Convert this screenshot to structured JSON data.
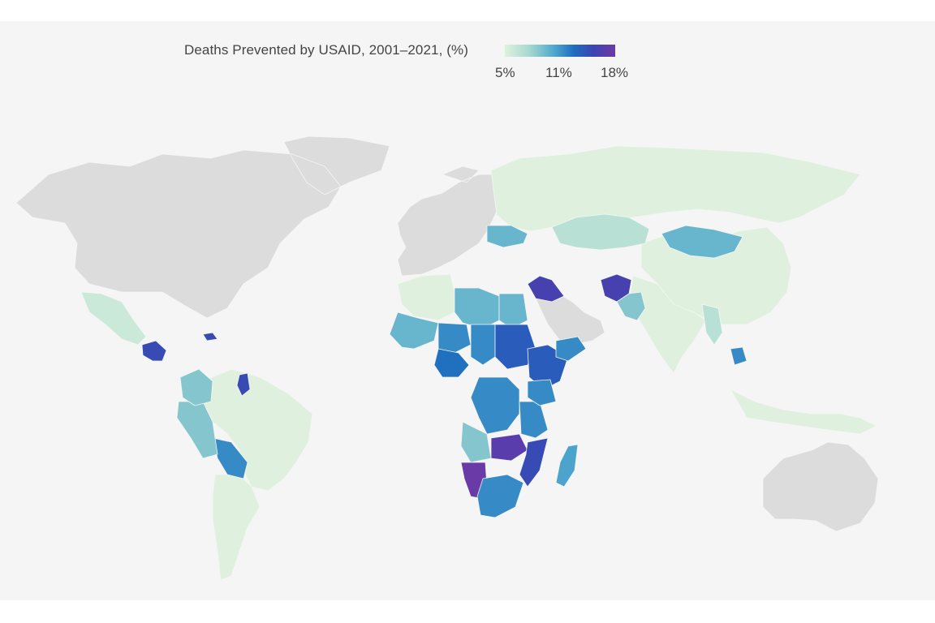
{
  "legend": {
    "title": "Deaths Prevented by USAID, 2001–2021, (%)",
    "tick_low": "5%",
    "tick_mid": "11%",
    "tick_high": "18%",
    "scale_min": 5,
    "scale_mid": 11,
    "scale_max": 18
  },
  "colors": {
    "frame": "#f5f5f5",
    "no_data": "#dcdcdc",
    "scale_lightest": "#dff1de",
    "scale_light": "#a7d9cf",
    "scale_mid": "#4fa7cd",
    "scale_blue": "#1e6fc0",
    "scale_indigo": "#3d43b3",
    "scale_purple": "#6a3aa7"
  },
  "chart_data": {
    "type": "choropleth",
    "title": "Deaths Prevented by USAID, 2001–2021, (%)",
    "color_range": [
      5,
      18
    ],
    "regions": [
      {
        "name": "Canada/USA/Greenland",
        "value": null
      },
      {
        "name": "Europe",
        "value": null
      },
      {
        "name": "Australia",
        "value": null
      },
      {
        "name": "Saudi Arabia",
        "value": null
      },
      {
        "name": "Russia",
        "value": 5
      },
      {
        "name": "China",
        "value": 5
      },
      {
        "name": "India",
        "value": 5
      },
      {
        "name": "Brazil",
        "value": 5
      },
      {
        "name": "Mexico",
        "value": 6
      },
      {
        "name": "Argentina",
        "value": 5
      },
      {
        "name": "Kazakhstan",
        "value": 7
      },
      {
        "name": "Mongolia",
        "value": 10
      },
      {
        "name": "Afghanistan",
        "value": 16
      },
      {
        "name": "Pakistan",
        "value": 9
      },
      {
        "name": "Iraq",
        "value": 16
      },
      {
        "name": "Algeria",
        "value": 5
      },
      {
        "name": "Libya",
        "value": 10
      },
      {
        "name": "Egypt",
        "value": 10
      },
      {
        "name": "Mali",
        "value": 10
      },
      {
        "name": "Niger",
        "value": 12
      },
      {
        "name": "Chad",
        "value": 12
      },
      {
        "name": "Sudan",
        "value": 14
      },
      {
        "name": "Ethiopia",
        "value": 14
      },
      {
        "name": "Nigeria",
        "value": 13
      },
      {
        "name": "DR Congo",
        "value": 12
      },
      {
        "name": "Angola",
        "value": 9
      },
      {
        "name": "Zambia",
        "value": 17
      },
      {
        "name": "Tanzania",
        "value": 12
      },
      {
        "name": "Kenya",
        "value": 12
      },
      {
        "name": "Mozambique",
        "value": 15
      },
      {
        "name": "Namibia",
        "value": 18
      },
      {
        "name": "South Africa",
        "value": 12
      },
      {
        "name": "Madagascar",
        "value": 11
      },
      {
        "name": "Bolivia",
        "value": 12
      },
      {
        "name": "Peru",
        "value": 9
      },
      {
        "name": "Colombia",
        "value": 9
      },
      {
        "name": "Guyana",
        "value": 15
      },
      {
        "name": "Guatemala/Honduras",
        "value": 15
      },
      {
        "name": "Haiti",
        "value": 15
      },
      {
        "name": "Yemen",
        "value": 12
      },
      {
        "name": "Cambodia",
        "value": 12
      },
      {
        "name": "Myanmar",
        "value": 7
      },
      {
        "name": "Indonesia",
        "value": 5
      },
      {
        "name": "Ukraine",
        "value": 10
      }
    ]
  }
}
